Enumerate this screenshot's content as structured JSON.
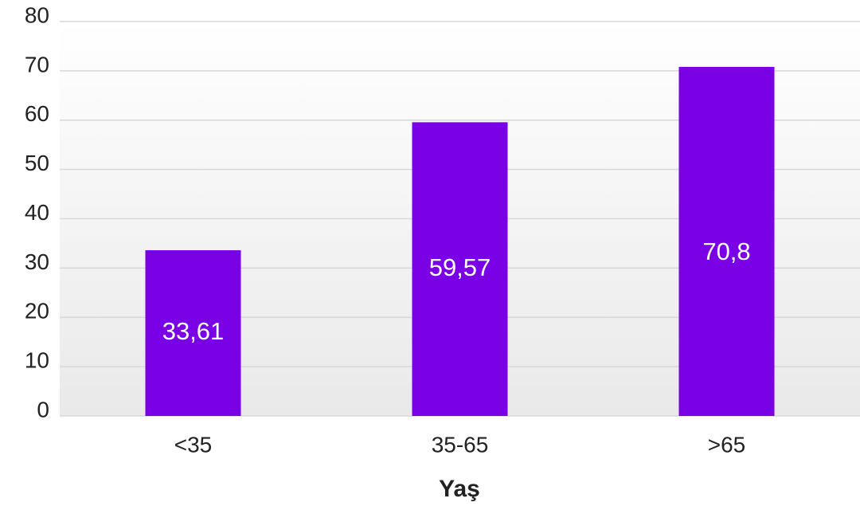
{
  "chart_data": {
    "type": "bar",
    "categories": [
      "<35",
      "35-65",
      ">65"
    ],
    "values": [
      33.61,
      59.57,
      70.8
    ],
    "value_labels": [
      "33,61",
      "59,57",
      "70,8"
    ],
    "color": "#7a00e6",
    "ylim": [
      0,
      80
    ],
    "yticks": [
      0,
      10,
      20,
      30,
      40,
      50,
      60,
      70,
      80
    ],
    "grid": true,
    "x_label": "Yaş"
  }
}
